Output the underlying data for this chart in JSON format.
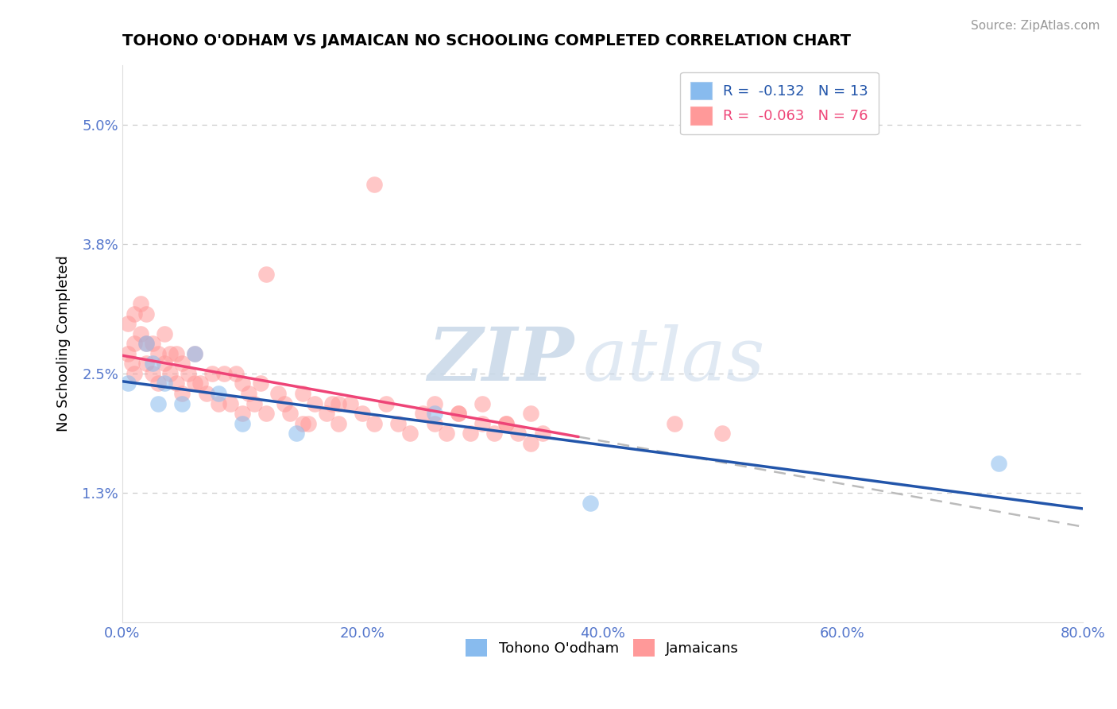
{
  "title": "TOHONO O'ODHAM VS JAMAICAN NO SCHOOLING COMPLETED CORRELATION CHART",
  "source": "Source: ZipAtlas.com",
  "ylabel": "No Schooling Completed",
  "legend_label1": "Tohono O'odham",
  "legend_label2": "Jamaicans",
  "R1": -0.132,
  "N1": 13,
  "R2": -0.063,
  "N2": 76,
  "color_blue": "#88BBEE",
  "color_pink": "#FF9999",
  "color_blue_line": "#2255AA",
  "color_pink_line": "#EE4477",
  "color_gray_dash": "#BBBBBB",
  "xlim": [
    0.0,
    0.8
  ],
  "ylim": [
    0.0,
    0.056
  ],
  "yticks": [
    0.013,
    0.025,
    0.038,
    0.05
  ],
  "ytick_labels": [
    "1.3%",
    "2.5%",
    "3.8%",
    "5.0%"
  ],
  "xticks": [
    0.0,
    0.2,
    0.4,
    0.6,
    0.8
  ],
  "xtick_labels": [
    "0.0%",
    "20.0%",
    "40.0%",
    "60.0%",
    "80.0%"
  ],
  "blue_x": [
    0.005,
    0.02,
    0.025,
    0.03,
    0.035,
    0.05,
    0.06,
    0.08,
    0.1,
    0.145,
    0.26,
    0.39,
    0.73
  ],
  "blue_y": [
    0.024,
    0.028,
    0.026,
    0.022,
    0.024,
    0.022,
    0.027,
    0.023,
    0.02,
    0.019,
    0.021,
    0.012,
    0.016
  ],
  "pink_x": [
    0.005,
    0.005,
    0.008,
    0.01,
    0.01,
    0.01,
    0.015,
    0.015,
    0.02,
    0.02,
    0.02,
    0.025,
    0.025,
    0.03,
    0.03,
    0.035,
    0.035,
    0.04,
    0.04,
    0.045,
    0.045,
    0.05,
    0.05,
    0.055,
    0.06,
    0.06,
    0.065,
    0.07,
    0.075,
    0.08,
    0.085,
    0.09,
    0.095,
    0.1,
    0.1,
    0.105,
    0.11,
    0.115,
    0.12,
    0.13,
    0.135,
    0.14,
    0.15,
    0.155,
    0.16,
    0.17,
    0.175,
    0.18,
    0.19,
    0.2,
    0.21,
    0.22,
    0.23,
    0.24,
    0.25,
    0.26,
    0.27,
    0.28,
    0.29,
    0.3,
    0.31,
    0.32,
    0.33,
    0.34,
    0.35,
    0.26,
    0.28,
    0.3,
    0.32,
    0.34,
    0.46,
    0.5,
    0.21,
    0.12,
    0.15,
    0.18
  ],
  "pink_y": [
    0.027,
    0.03,
    0.026,
    0.025,
    0.028,
    0.031,
    0.029,
    0.032,
    0.026,
    0.028,
    0.031,
    0.025,
    0.028,
    0.024,
    0.027,
    0.026,
    0.029,
    0.025,
    0.027,
    0.024,
    0.027,
    0.023,
    0.026,
    0.025,
    0.024,
    0.027,
    0.024,
    0.023,
    0.025,
    0.022,
    0.025,
    0.022,
    0.025,
    0.021,
    0.024,
    0.023,
    0.022,
    0.024,
    0.021,
    0.023,
    0.022,
    0.021,
    0.023,
    0.02,
    0.022,
    0.021,
    0.022,
    0.02,
    0.022,
    0.021,
    0.02,
    0.022,
    0.02,
    0.019,
    0.021,
    0.02,
    0.019,
    0.021,
    0.019,
    0.02,
    0.019,
    0.02,
    0.019,
    0.018,
    0.019,
    0.022,
    0.021,
    0.022,
    0.02,
    0.021,
    0.02,
    0.019,
    0.044,
    0.035,
    0.02,
    0.022
  ],
  "pink_line_x_start": 0.0,
  "pink_line_x_solid_end": 0.38,
  "pink_line_x_end": 0.8,
  "blue_line_x_start": 0.0,
  "blue_line_x_end": 0.8,
  "watermark_zip": "ZIP",
  "watermark_atlas": "atlas",
  "background_color": "#FFFFFF"
}
